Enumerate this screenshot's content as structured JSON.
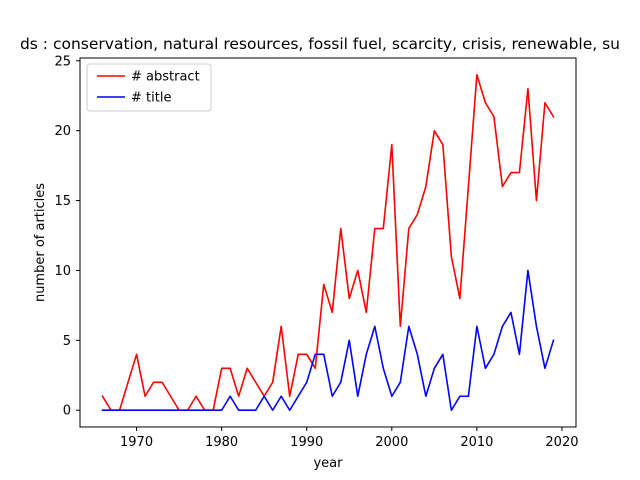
{
  "chart_data": {
    "type": "line",
    "title": "ds : conservation, natural resources, fossil fuel, scarcity, crisis, renewable, su",
    "xlabel": "year",
    "ylabel": "number of articles",
    "xlim": [
      1963.35,
      2021.65
    ],
    "ylim": [
      -1.2,
      25.2
    ],
    "xticks": [
      1970,
      1980,
      1990,
      2000,
      2010,
      2020
    ],
    "yticks": [
      0,
      5,
      10,
      15,
      20,
      25
    ],
    "legend_position": "upper-left",
    "x": [
      1966,
      1967,
      1968,
      1969,
      1970,
      1971,
      1972,
      1973,
      1974,
      1975,
      1976,
      1977,
      1978,
      1979,
      1980,
      1981,
      1982,
      1983,
      1984,
      1985,
      1986,
      1987,
      1988,
      1989,
      1990,
      1991,
      1992,
      1993,
      1994,
      1995,
      1996,
      1997,
      1998,
      1999,
      2000,
      2001,
      2002,
      2003,
      2004,
      2005,
      2006,
      2007,
      2008,
      2009,
      2010,
      2011,
      2012,
      2013,
      2014,
      2015,
      2016,
      2017,
      2018,
      2019
    ],
    "series": [
      {
        "name": "# abstract",
        "color": "#ff0000",
        "values": [
          1,
          0,
          0,
          2,
          4,
          1,
          2,
          2,
          1,
          0,
          0,
          1,
          0,
          0,
          3,
          3,
          1,
          3,
          2,
          1,
          2,
          6,
          1,
          4,
          4,
          3,
          9,
          7,
          13,
          8,
          10,
          7,
          13,
          13,
          19,
          6,
          13,
          14,
          16,
          20,
          19,
          11,
          8,
          16,
          24,
          22,
          21,
          16,
          17,
          17,
          23,
          15,
          22,
          21
        ]
      },
      {
        "name": "# title",
        "color": "#0000ff",
        "values": [
          0,
          0,
          0,
          0,
          0,
          0,
          0,
          0,
          0,
          0,
          0,
          0,
          0,
          0,
          0,
          1,
          0,
          0,
          0,
          1,
          0,
          1,
          0,
          1,
          2,
          4,
          4,
          1,
          2,
          5,
          1,
          4,
          6,
          3,
          1,
          2,
          6,
          4,
          1,
          3,
          4,
          0,
          1,
          1,
          6,
          3,
          4,
          6,
          7,
          4,
          10,
          6,
          3,
          5
        ]
      }
    ]
  }
}
